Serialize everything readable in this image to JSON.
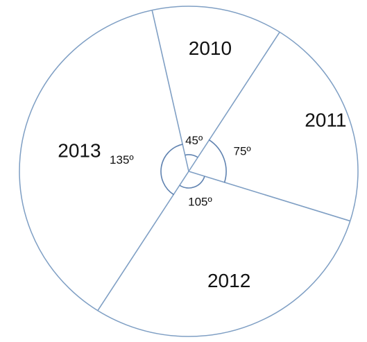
{
  "chart_data": {
    "type": "pie",
    "categories": [
      "2010",
      "2011",
      "2012",
      "2013"
    ],
    "values": [
      45,
      75,
      105,
      135
    ],
    "angle_labels": [
      "45º",
      "75º",
      "105º",
      "135º"
    ],
    "unit": "degrees",
    "title": "",
    "legend": "none"
  },
  "colors": {
    "outline": "#7f9fc4",
    "arc": "#5f82b0",
    "text": "#111111"
  }
}
